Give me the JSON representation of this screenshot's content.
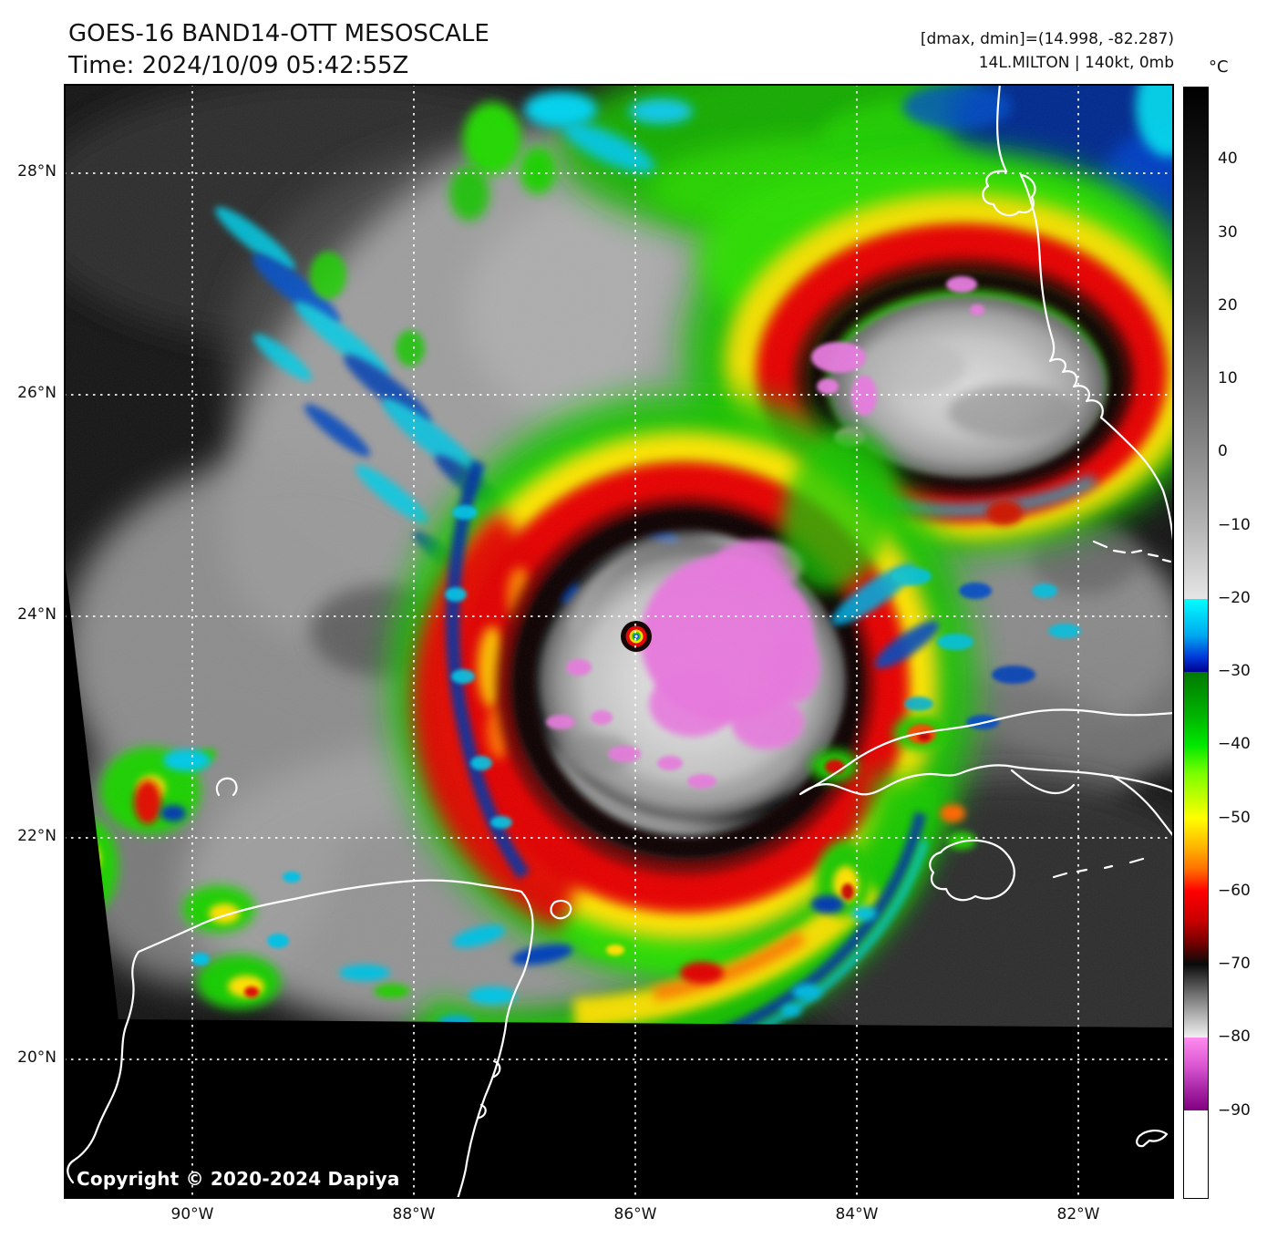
{
  "header": {
    "title": "GOES-16 BAND14-OTT MESOSCALE",
    "time_line": "Time: 2024/10/09 05:42:55Z"
  },
  "annotations": {
    "dminmax": "[dmax, dmin]=(14.998, -82.287)",
    "storm": "14L.MILTON | 140kt, 0mb"
  },
  "colorbar": {
    "unit": "°C",
    "vmax": 50,
    "vmin": -102,
    "ticks": [
      {
        "v": 40,
        "label": "40"
      },
      {
        "v": 30,
        "label": "30"
      },
      {
        "v": 20,
        "label": "20"
      },
      {
        "v": 10,
        "label": "10"
      },
      {
        "v": 0,
        "label": "0"
      },
      {
        "v": -10,
        "label": "−10"
      },
      {
        "v": -20,
        "label": "−20"
      },
      {
        "v": -30,
        "label": "−30"
      },
      {
        "v": -40,
        "label": "−40"
      },
      {
        "v": -50,
        "label": "−50"
      },
      {
        "v": -60,
        "label": "−60"
      },
      {
        "v": -70,
        "label": "−70"
      },
      {
        "v": -80,
        "label": "−80"
      },
      {
        "v": -90,
        "label": "−90"
      }
    ],
    "stops": [
      {
        "v": 50,
        "c": "#000000"
      },
      {
        "v": 20,
        "c": "#3c3c3c"
      },
      {
        "v": 0,
        "c": "#8a8a8a"
      },
      {
        "v": -10,
        "c": "#b4b4b4"
      },
      {
        "v": -20,
        "c": "#e6e6e6"
      },
      {
        "v": -20,
        "c": "#00ffff"
      },
      {
        "v": -25,
        "c": "#00a8f0"
      },
      {
        "v": -28,
        "c": "#0038d8"
      },
      {
        "v": -30,
        "c": "#000090"
      },
      {
        "v": -30,
        "c": "#007800"
      },
      {
        "v": -36,
        "c": "#00b400"
      },
      {
        "v": -40,
        "c": "#00e800"
      },
      {
        "v": -44,
        "c": "#7dff00"
      },
      {
        "v": -50,
        "c": "#ffff00"
      },
      {
        "v": -54,
        "c": "#ffb400"
      },
      {
        "v": -57,
        "c": "#ff7000"
      },
      {
        "v": -60,
        "c": "#ff0000"
      },
      {
        "v": -64,
        "c": "#c80000"
      },
      {
        "v": -67,
        "c": "#780000"
      },
      {
        "v": -70,
        "c": "#0a0a0a"
      },
      {
        "v": -74,
        "c": "#6e6e6e"
      },
      {
        "v": -78,
        "c": "#c8c8c8"
      },
      {
        "v": -80,
        "c": "#f0f0f0"
      },
      {
        "v": -80,
        "c": "#ff8cf0"
      },
      {
        "v": -84,
        "c": "#d955d0"
      },
      {
        "v": -87,
        "c": "#a828a8"
      },
      {
        "v": -90,
        "c": "#800080"
      },
      {
        "v": -90,
        "c": "#ffffff"
      },
      {
        "v": -102,
        "c": "#ffffff"
      }
    ]
  },
  "axes": {
    "lat_labels": [
      "28°N",
      "26°N",
      "24°N",
      "22°N",
      "20°N"
    ],
    "lon_labels": [
      "90°W",
      "88°W",
      "86°W",
      "84°W",
      "82°W"
    ]
  },
  "map": {
    "copyright": "Copyright © 2020-2024 Dapiya"
  }
}
